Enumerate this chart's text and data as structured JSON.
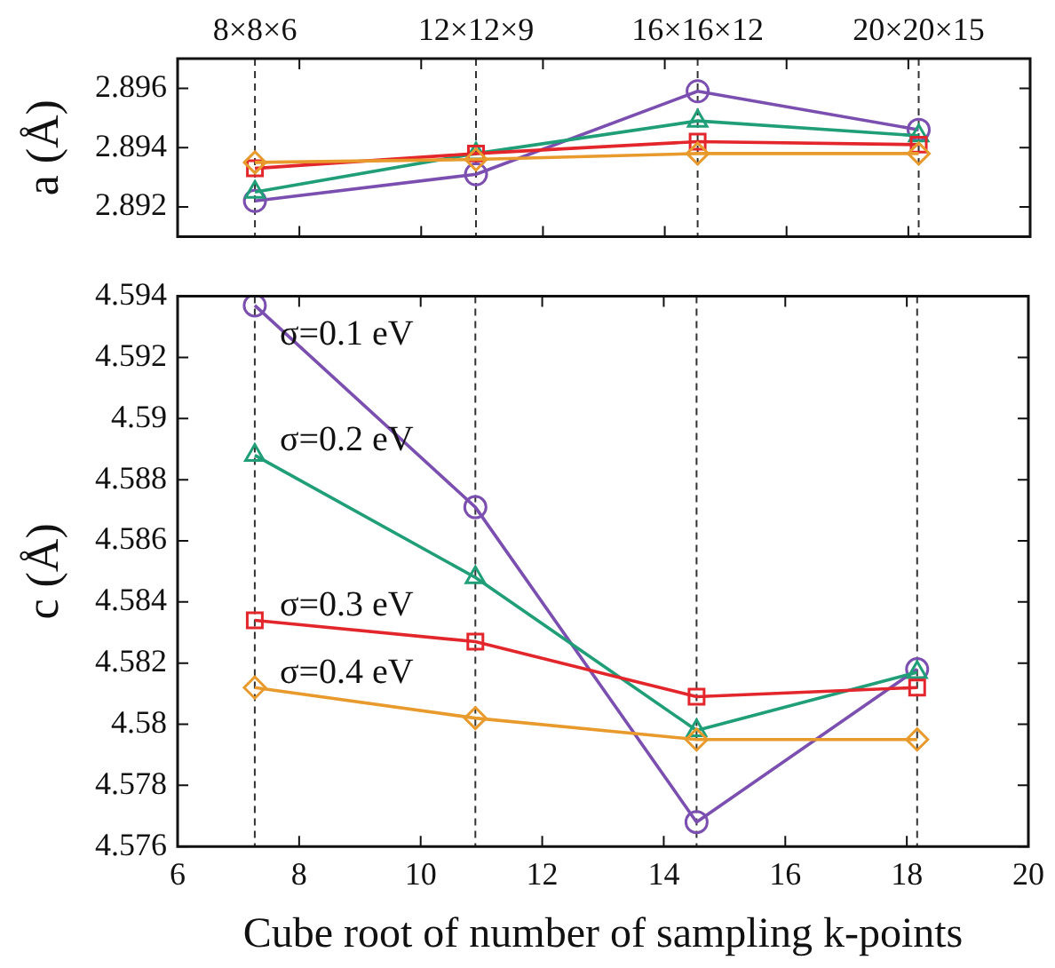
{
  "chart_data": [
    {
      "type": "line",
      "ylabel": "a (Å)",
      "x": [
        7.27,
        10.9,
        14.54,
        18.17
      ],
      "xlim": [
        6,
        20
      ],
      "xticks": [
        6,
        8,
        10,
        12,
        14,
        16,
        18,
        20
      ],
      "ylim": [
        2.891,
        2.897
      ],
      "yticks": [
        2.892,
        2.894,
        2.896
      ],
      "tick_labels": "y",
      "grid": false,
      "legend": false,
      "ref_lines": [
        {
          "axis": "x",
          "value": 7.27,
          "label": "8×8×6",
          "line_style": "dashed",
          "color": "#333333"
        },
        {
          "axis": "x",
          "value": 10.9,
          "label": "12×12×9",
          "line_style": "dashed",
          "color": "#333333"
        },
        {
          "axis": "x",
          "value": 14.54,
          "label": "16×16×12",
          "line_style": "dashed",
          "color": "#333333"
        },
        {
          "axis": "x",
          "value": 18.17,
          "label": "20×20×15",
          "line_style": "dashed",
          "color": "#333333"
        }
      ],
      "series": [
        {
          "color": "#7b4fb0",
          "marker": "circle",
          "values": [
            2.8922,
            2.8931,
            2.8959,
            2.8946
          ]
        },
        {
          "color": "#1f9e78",
          "marker": "triangle",
          "values": [
            2.8925,
            2.8938,
            2.8949,
            2.8944
          ]
        },
        {
          "color": "#e3262b",
          "marker": "square",
          "values": [
            2.8933,
            2.8938,
            2.8942,
            2.8941
          ]
        },
        {
          "color": "#e89a2c",
          "marker": "diamond",
          "values": [
            2.8935,
            2.8936,
            2.8938,
            2.8938
          ]
        }
      ]
    },
    {
      "type": "line",
      "xlabel": "Cube root of number of sampling k-points",
      "ylabel": "c (Å)",
      "x": [
        7.27,
        10.9,
        14.54,
        18.17
      ],
      "xlim": [
        6,
        20
      ],
      "xticks": [
        6,
        8,
        10,
        12,
        14,
        16,
        18,
        20
      ],
      "ylim": [
        4.576,
        4.594
      ],
      "yticks": [
        4.576,
        4.578,
        4.58,
        4.582,
        4.584,
        4.586,
        4.588,
        4.59,
        4.592,
        4.594
      ],
      "grid": false,
      "legend": false,
      "ref_lines": [
        {
          "axis": "x",
          "value": 7.27,
          "line_style": "dashed",
          "color": "#333333"
        },
        {
          "axis": "x",
          "value": 10.9,
          "line_style": "dashed",
          "color": "#333333"
        },
        {
          "axis": "x",
          "value": 14.54,
          "line_style": "dashed",
          "color": "#333333"
        },
        {
          "axis": "x",
          "value": 18.17,
          "line_style": "dashed",
          "color": "#333333"
        }
      ],
      "series": [
        {
          "name": "σ=0.1 eV",
          "color": "#7b4fb0",
          "marker": "circle",
          "values": [
            4.5937,
            4.5871,
            4.5768,
            4.5818
          ]
        },
        {
          "name": "σ=0.2 eV",
          "color": "#1f9e78",
          "marker": "triangle",
          "values": [
            4.5888,
            4.5848,
            4.5798,
            4.5817
          ]
        },
        {
          "name": "σ=0.3 eV",
          "color": "#e3262b",
          "marker": "square",
          "values": [
            4.5834,
            4.5827,
            4.5809,
            4.5812
          ]
        },
        {
          "name": "σ=0.4 eV",
          "color": "#e89a2c",
          "marker": "diamond",
          "values": [
            4.5812,
            4.5802,
            4.5795,
            4.5795
          ]
        }
      ]
    }
  ]
}
